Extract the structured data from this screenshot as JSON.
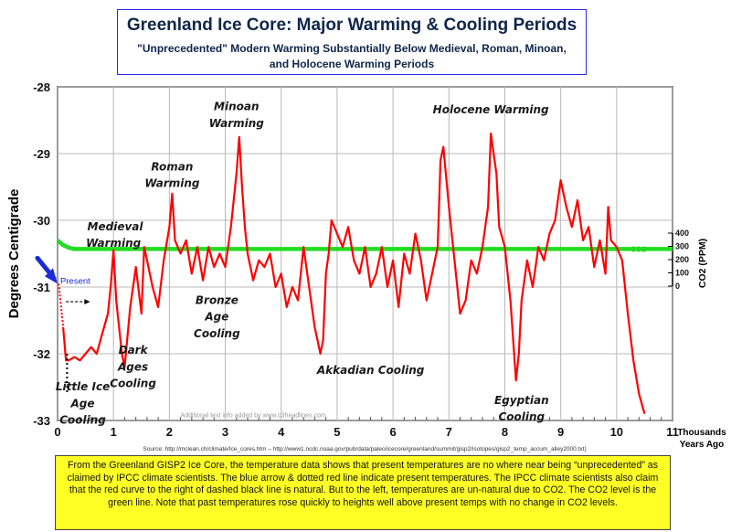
{
  "title": "Greenland Ice Core: Major Warming & Cooling Periods",
  "subtitle": "\"Unprecedented\" Modern Warming Substantially Below Medieval, Roman, Minoan, and Holocene Warming Periods",
  "caption": "From the Greenland GISP2 Ice Core, the temperature data shows that present temperatures are no where near being “unprecedented” as claimed by IPCC climate scientists. The blue arrow & dotted red line indicate present temperatures. The IPCC climate scientists also claim that the red curve to the right of dashed black line is natural. But to the left, temperatures are un-natural due to CO2. The CO2 level is the green line. Note that past temperatures rose quickly to heights well above present temps with no change in CO2 levels.",
  "source": "Source: http://mclean.ch/climate/Ice_cores.htm  –  http://www1.ncdc.noaa.gov/pub/data/paleo/icecore/greenland/summit/gisp2/isotopes/gisp2_temp_accum_alley2000.txt)",
  "watermark": "Additional text info added by www.c3headlines.com",
  "present_label": "Present",
  "chart_data": {
    "type": "line",
    "title": "Greenland Ice Core: Major Warming & Cooling Periods",
    "xlabel": "Thousands Years Ago",
    "ylabel": "Degrees Centigrade",
    "y2label": "CO2 (PPM)",
    "xlim": [
      0,
      11
    ],
    "ylim": [
      -33,
      -28
    ],
    "y2lim": [
      0,
      400
    ],
    "x_ticks": [
      0,
      1,
      2,
      3,
      4,
      5,
      6,
      7,
      8,
      9,
      10,
      11
    ],
    "y_ticks": [
      -28,
      -29,
      -30,
      -31,
      -32,
      -33
    ],
    "y2_ticks": [
      0,
      100,
      200,
      300,
      400
    ],
    "grid": true,
    "series": [
      {
        "name": "Temperature",
        "color": "#ff0000",
        "x": [
          0.1,
          0.15,
          0.2,
          0.3,
          0.4,
          0.5,
          0.6,
          0.7,
          0.8,
          0.9,
          0.95,
          1.0,
          1.05,
          1.1,
          1.15,
          1.2,
          1.3,
          1.4,
          1.5,
          1.55,
          1.6,
          1.7,
          1.8,
          1.9,
          2.0,
          2.05,
          2.1,
          2.2,
          2.3,
          2.4,
          2.5,
          2.6,
          2.7,
          2.8,
          2.9,
          3.0,
          3.1,
          3.2,
          3.25,
          3.3,
          3.35,
          3.4,
          3.5,
          3.6,
          3.7,
          3.8,
          3.9,
          4.0,
          4.1,
          4.2,
          4.3,
          4.4,
          4.5,
          4.6,
          4.7,
          4.75,
          4.8,
          4.85,
          4.9,
          5.0,
          5.1,
          5.2,
          5.3,
          5.4,
          5.5,
          5.6,
          5.7,
          5.8,
          5.9,
          6.0,
          6.1,
          6.2,
          6.3,
          6.4,
          6.5,
          6.6,
          6.7,
          6.8,
          6.85,
          6.9,
          7.0,
          7.1,
          7.2,
          7.3,
          7.4,
          7.5,
          7.6,
          7.7,
          7.75,
          7.8,
          7.85,
          7.9,
          8.0,
          8.1,
          8.2,
          8.25,
          8.3,
          8.4,
          8.5,
          8.6,
          8.7,
          8.8,
          8.9,
          9.0,
          9.1,
          9.2,
          9.3,
          9.4,
          9.5,
          9.6,
          9.7,
          9.8,
          9.85,
          9.9,
          10.0,
          10.1,
          10.2,
          10.3,
          10.4,
          10.5
        ],
        "y": [
          -31.6,
          -32.1,
          -32.1,
          -32.05,
          -32.1,
          -32.0,
          -31.9,
          -32.0,
          -31.7,
          -31.4,
          -31.0,
          -30.45,
          -31.2,
          -31.6,
          -32.0,
          -32.2,
          -31.3,
          -30.7,
          -31.4,
          -30.4,
          -30.6,
          -31.0,
          -31.3,
          -30.6,
          -30.1,
          -29.6,
          -30.3,
          -30.5,
          -30.3,
          -30.8,
          -30.4,
          -30.9,
          -30.4,
          -30.7,
          -30.5,
          -30.7,
          -30.1,
          -29.3,
          -28.75,
          -29.5,
          -30.1,
          -30.5,
          -30.9,
          -30.6,
          -30.7,
          -30.5,
          -31.0,
          -30.8,
          -31.3,
          -31.0,
          -31.2,
          -30.4,
          -31.0,
          -31.6,
          -32.0,
          -31.8,
          -30.8,
          -30.5,
          -30.0,
          -30.2,
          -30.4,
          -30.1,
          -30.6,
          -30.8,
          -30.4,
          -31.0,
          -30.8,
          -30.4,
          -31.0,
          -30.6,
          -31.3,
          -30.5,
          -30.8,
          -30.2,
          -30.6,
          -31.2,
          -30.8,
          -30.4,
          -29.1,
          -28.9,
          -29.8,
          -30.6,
          -31.4,
          -31.2,
          -30.6,
          -30.8,
          -30.4,
          -29.8,
          -28.7,
          -29.0,
          -29.3,
          -30.1,
          -30.4,
          -31.2,
          -32.4,
          -32.0,
          -31.2,
          -30.6,
          -31.0,
          -30.4,
          -30.6,
          -30.2,
          -30.0,
          -29.4,
          -29.8,
          -30.1,
          -29.7,
          -30.3,
          -30.1,
          -30.7,
          -30.3,
          -30.8,
          -29.8,
          -30.3,
          -30.4,
          -30.6,
          -31.4,
          -32.1,
          -32.6,
          -32.9
        ]
      },
      {
        "name": "CO2",
        "color": "#22dd22",
        "x": [
          0,
          0.1,
          0.2,
          0.3,
          1,
          2,
          3,
          4,
          5,
          6,
          7,
          8,
          9,
          10,
          11
        ],
        "y": [
          345,
          310,
          290,
          280,
          280,
          280,
          280,
          280,
          280,
          280,
          280,
          280,
          280,
          280,
          280
        ]
      }
    ],
    "present_value": -30.95,
    "present_x": 0.0,
    "annotations": [
      {
        "text": "Minoan",
        "x": 3.2,
        "y": -28.35
      },
      {
        "text": "Warming",
        "x": 3.2,
        "y": -28.6
      },
      {
        "text": "Holocene Warming",
        "x": 7.75,
        "y": -28.4
      },
      {
        "text": "Roman",
        "x": 2.05,
        "y": -29.25
      },
      {
        "text": "Warming",
        "x": 2.05,
        "y": -29.5
      },
      {
        "text": "Medieval",
        "x": 1.03,
        "y": -30.15
      },
      {
        "text": "Warming",
        "x": 1.0,
        "y": -30.4
      },
      {
        "text": "Bronze",
        "x": 2.85,
        "y": -31.25
      },
      {
        "text": "Age",
        "x": 2.85,
        "y": -31.5
      },
      {
        "text": "Cooling",
        "x": 2.85,
        "y": -31.75
      },
      {
        "text": "Dark",
        "x": 1.35,
        "y": -32.0
      },
      {
        "text": "Ages",
        "x": 1.35,
        "y": -32.25
      },
      {
        "text": "Cooling",
        "x": 1.35,
        "y": -32.5
      },
      {
        "text": "Little Ice",
        "x": 0.45,
        "y": -32.55
      },
      {
        "text": "Age",
        "x": 0.45,
        "y": -32.8
      },
      {
        "text": "Cooling",
        "x": 0.45,
        "y": -33.05
      },
      {
        "text": "Akkadian Cooling",
        "x": 5.6,
        "y": -32.3
      },
      {
        "text": "Egyptian",
        "x": 8.3,
        "y": -32.75
      },
      {
        "text": "Cooling",
        "x": 8.3,
        "y": -33.0
      }
    ]
  }
}
